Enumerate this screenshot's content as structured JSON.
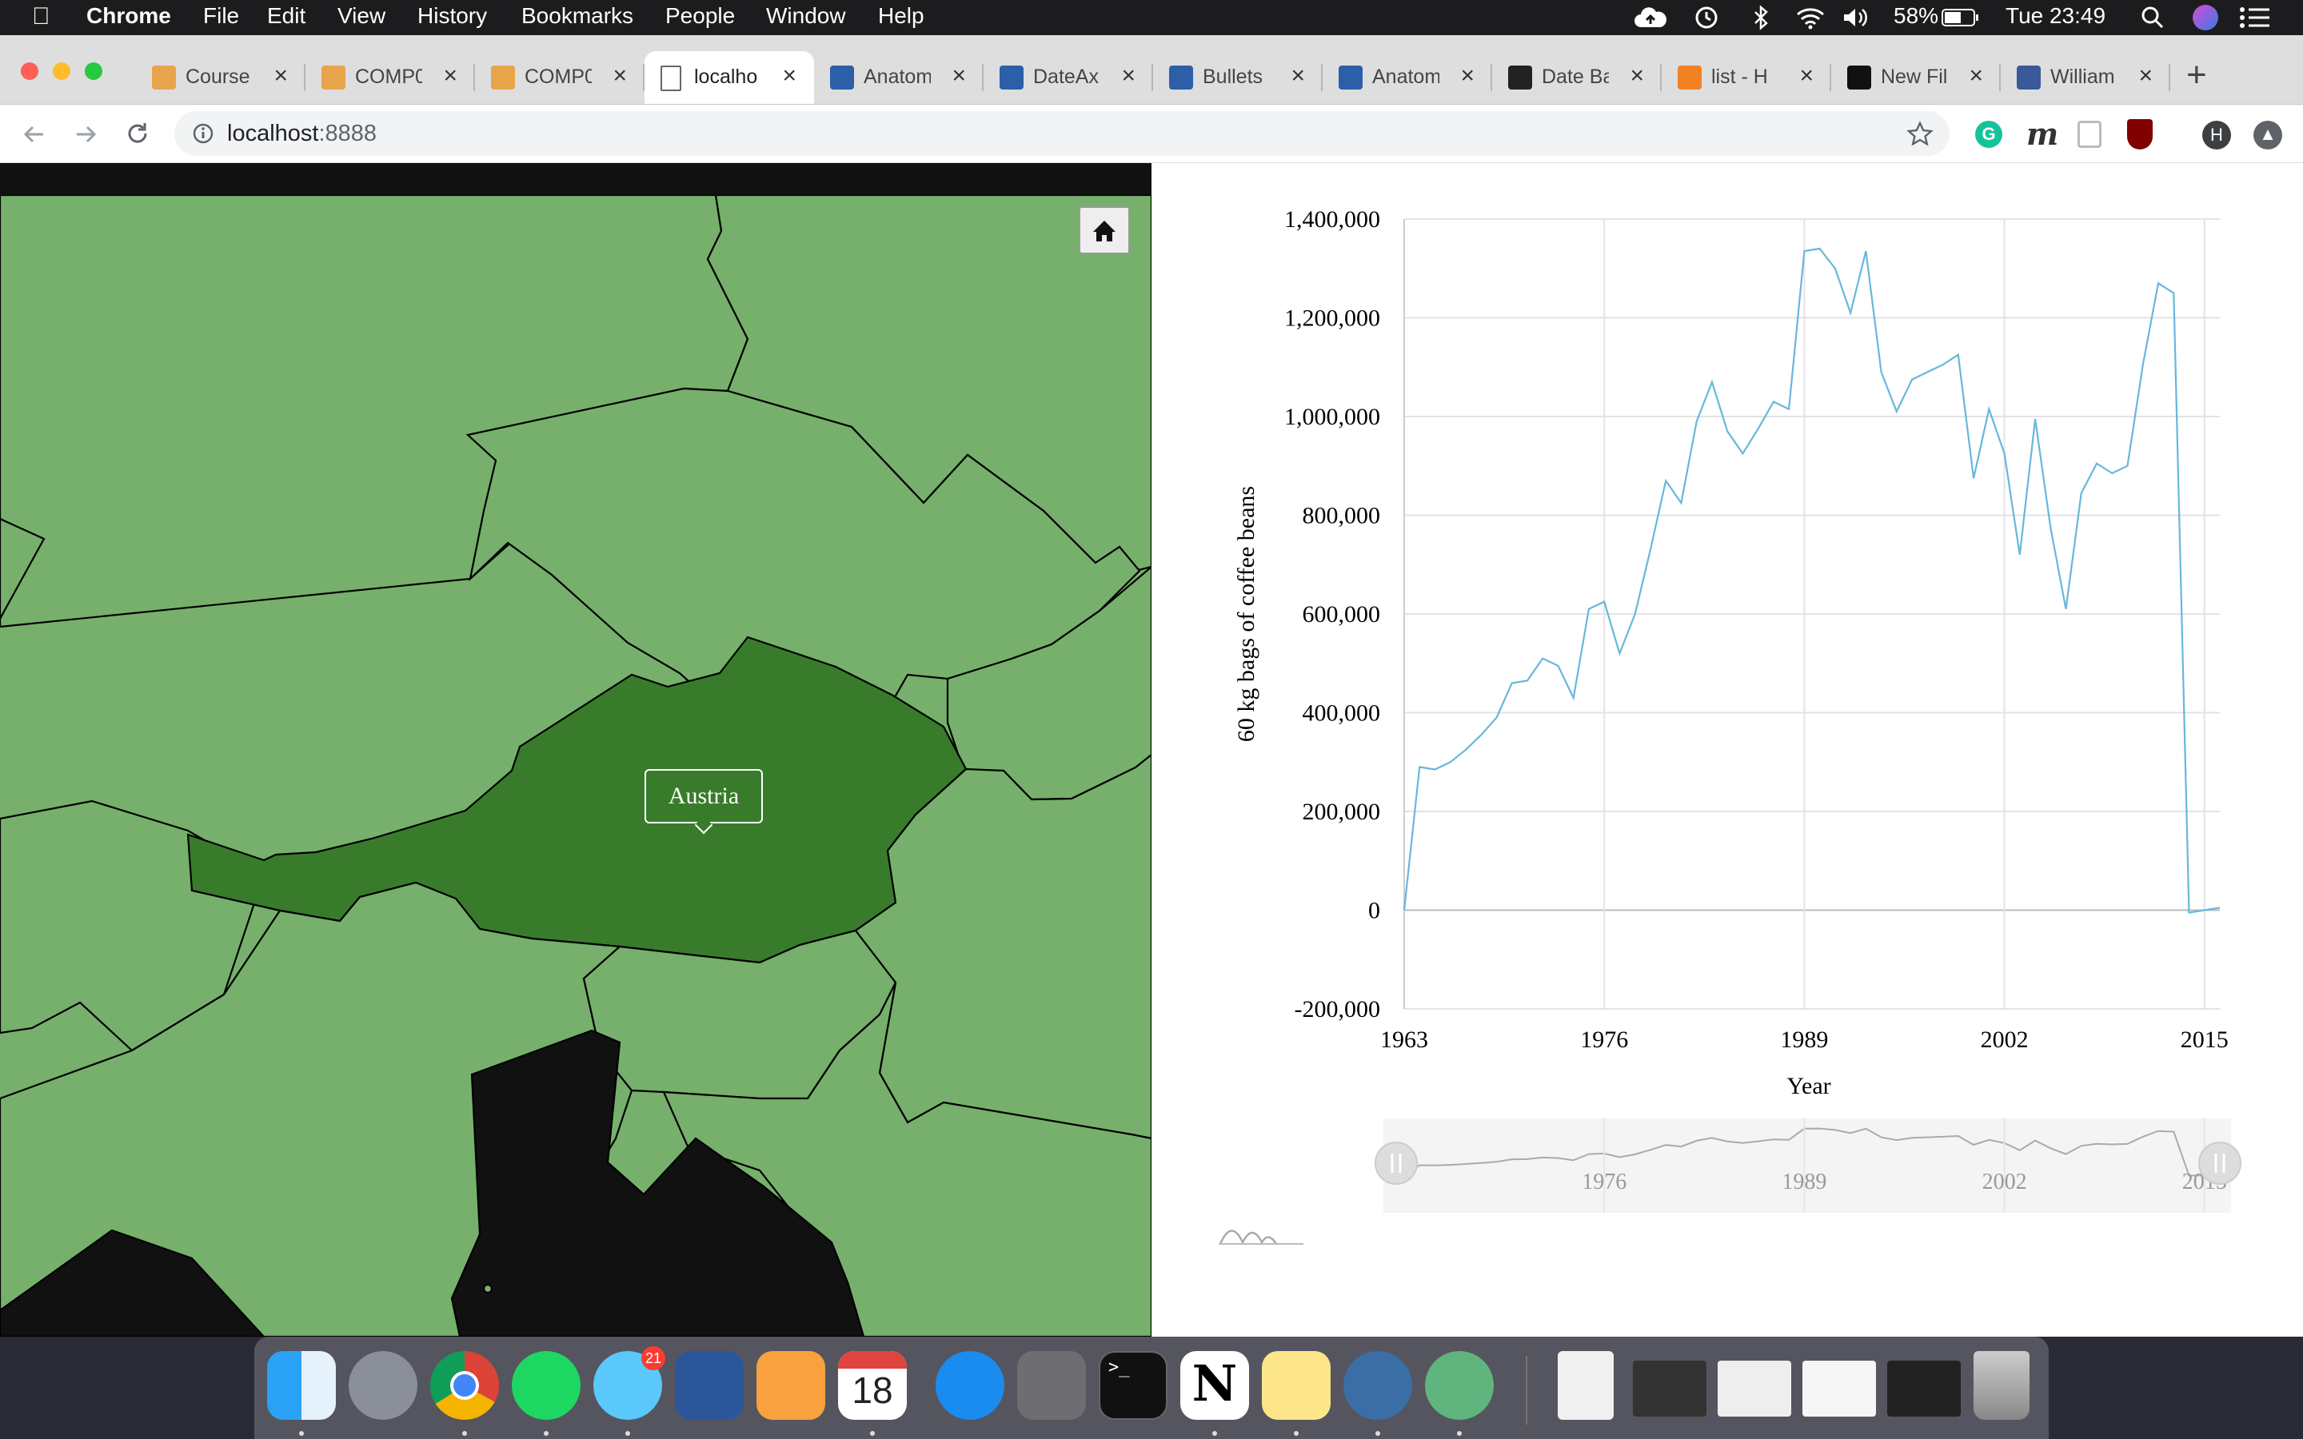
{
  "menubar": {
    "app": "Chrome",
    "items": [
      "File",
      "Edit",
      "View",
      "History",
      "Bookmarks",
      "People",
      "Window",
      "Help"
    ],
    "battery": "58%",
    "clock": "Tue 23:49"
  },
  "tabs": [
    {
      "label": "Course",
      "favicon": "ucl-icon",
      "color": "#e8a44a"
    },
    {
      "label": "COMP0",
      "favicon": "ucl-icon",
      "color": "#e8a44a"
    },
    {
      "label": "COMP0",
      "favicon": "ucl-icon",
      "color": "#e8a44a"
    },
    {
      "label": "localho",
      "favicon": "page-icon",
      "active": true
    },
    {
      "label": "Anatom",
      "favicon": "amcharts-icon",
      "color": "#2c5fa8"
    },
    {
      "label": "DateAx",
      "favicon": "amcharts-icon",
      "color": "#2c5fa8"
    },
    {
      "label": "Bullets",
      "favicon": "amcharts-icon",
      "color": "#2c5fa8"
    },
    {
      "label": "Anatom",
      "favicon": "amcharts-icon",
      "color": "#2c5fa8"
    },
    {
      "label": "Date Ba",
      "favicon": "codepen-icon",
      "color": "#222"
    },
    {
      "label": "list - H",
      "favicon": "stackoverflow-icon",
      "color": "#f48024"
    },
    {
      "label": "New Fil",
      "favicon": "github-icon",
      "color": "#111"
    },
    {
      "label": "William",
      "favicon": "facebook-icon",
      "color": "#3b5998"
    }
  ],
  "toolbar": {
    "url_host": "localhost",
    "url_port": ":8888",
    "profile_initial": "H"
  },
  "map": {
    "tooltip": "Austria",
    "colors": {
      "land": "#76b06c",
      "highlight": "#387c2b",
      "nodata": "#111111"
    }
  },
  "chart_data": {
    "type": "line",
    "title": "",
    "xlabel": "Year",
    "ylabel": "60 kg bags of coffee beans",
    "xlim": [
      1963,
      2016
    ],
    "ylim": [
      -200000,
      1400000
    ],
    "x_ticks": [
      "1963",
      "1976",
      "1989",
      "2002",
      "2015"
    ],
    "y_ticks": [
      "1,400,000",
      "1,200,000",
      "1,000,000",
      "800,000",
      "600,000",
      "400,000",
      "200,000",
      "0",
      "-200,000"
    ],
    "grid": true,
    "color": "#67b7dc",
    "series": [
      {
        "x": [
          1963,
          1964,
          1965,
          1966,
          1967,
          1968,
          1969,
          1970,
          1971,
          1972,
          1973,
          1974,
          1975,
          1976,
          1977,
          1978,
          1979,
          1980,
          1981,
          1982,
          1983,
          1984,
          1985,
          1986,
          1987,
          1988,
          1989,
          1990,
          1991,
          1992,
          1993,
          1994,
          1995,
          1996,
          1997,
          1998,
          1999,
          2000,
          2001,
          2002,
          2003,
          2004,
          2005,
          2006,
          2007,
          2008,
          2009,
          2010,
          2011,
          2012,
          2013,
          2014,
          2015,
          2016
        ],
        "y": [
          0,
          290000,
          285000,
          300000,
          325000,
          355000,
          390000,
          460000,
          465000,
          510000,
          495000,
          430000,
          610000,
          625000,
          520000,
          600000,
          730000,
          870000,
          825000,
          990000,
          1070000,
          970000,
          925000,
          975000,
          1030000,
          1015000,
          1335000,
          1340000,
          1300000,
          1210000,
          1335000,
          1090000,
          1010000,
          1075000,
          1090000,
          1105000,
          1125000,
          875000,
          1015000,
          925000,
          720000,
          995000,
          775000,
          610000,
          845000,
          905000,
          885000,
          900000,
          1105000,
          1270000,
          1250000,
          -5000,
          0,
          5000
        ]
      }
    ],
    "navigator": {
      "labels": [
        "1976",
        "1989",
        "2002",
        "2015"
      ]
    }
  }
}
